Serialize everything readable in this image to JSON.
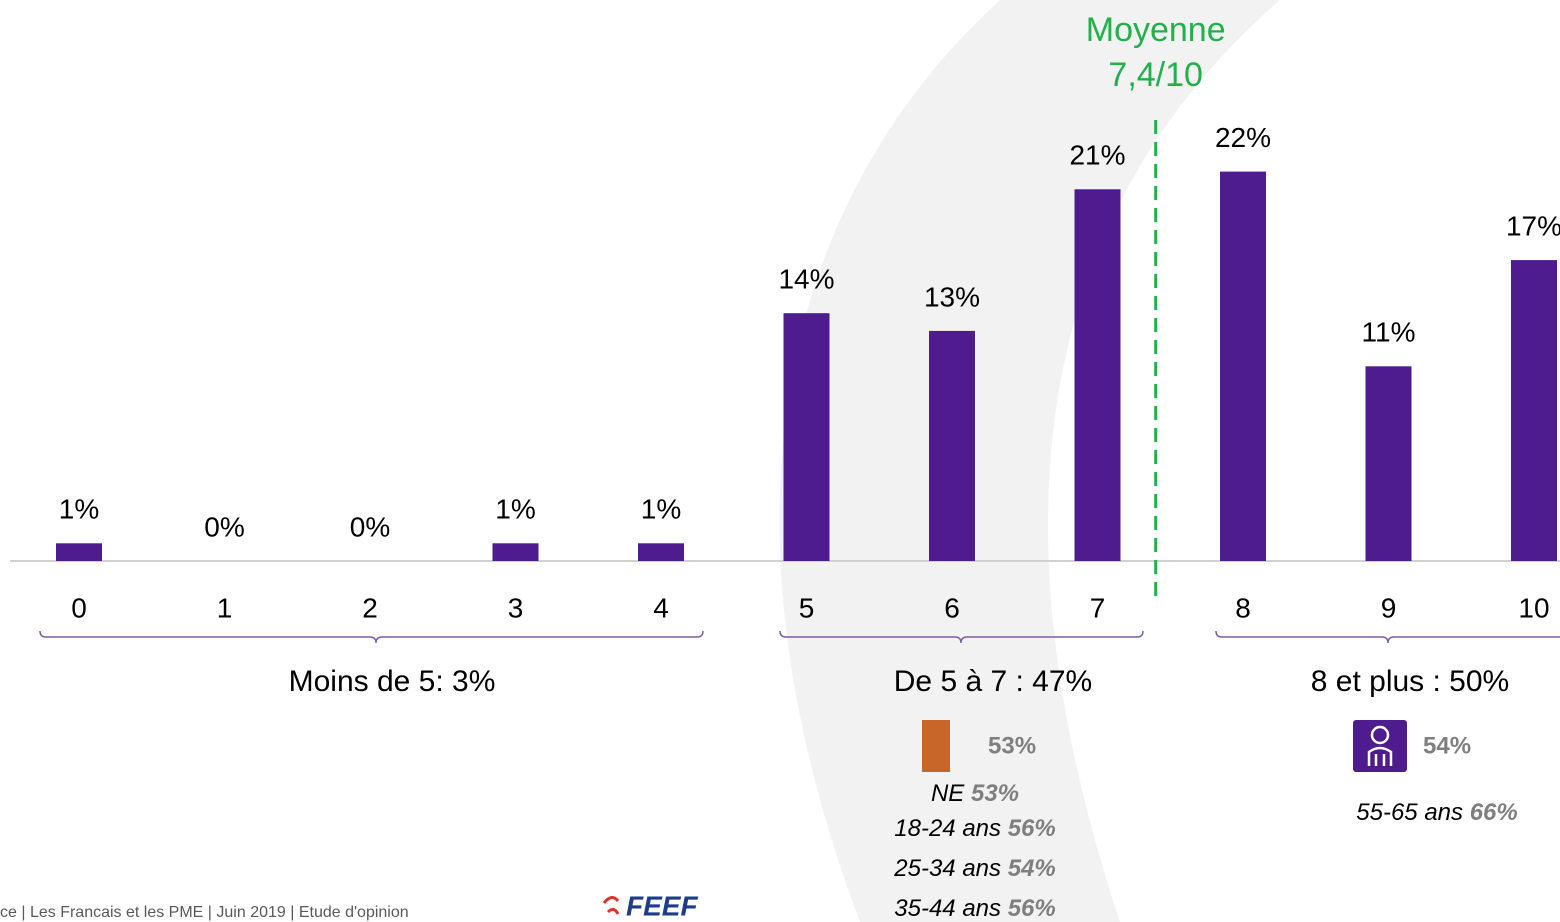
{
  "chart_data": {
    "type": "bar",
    "categories": [
      "0",
      "1",
      "2",
      "3",
      "4",
      "5",
      "6",
      "7",
      "8",
      "9",
      "10"
    ],
    "values": [
      1,
      0,
      0,
      1,
      1,
      14,
      13,
      21,
      22,
      11,
      17
    ],
    "value_labels": [
      "1%",
      "0%",
      "0%",
      "1%",
      "1%",
      "14%",
      "13%",
      "21%",
      "22%",
      "11%",
      "17%"
    ],
    "color": "#4f1c8f",
    "mean": {
      "title": "Moyenne",
      "value": 7.4,
      "label": "7,4/10",
      "color": "#22b04b"
    },
    "groups": [
      {
        "label": "Moins de 5: 3%"
      },
      {
        "label": "De 5 à 7 : 47%",
        "icon_value": "53%",
        "details": [
          {
            "label": "NE",
            "value": "53%"
          },
          {
            "label": "18-24 ans",
            "value": "56%"
          },
          {
            "label": "25-34 ans",
            "value": "54%"
          },
          {
            "label": "35-44 ans",
            "value": "56%"
          }
        ]
      },
      {
        "label": "8 et plus : 50%",
        "icon_value": "54%",
        "details": [
          {
            "label": "55-65 ans",
            "value": "66%"
          }
        ]
      }
    ]
  },
  "footer": "ce | Les Francais et les PME | Juin 2019 | Etude d'opinion",
  "logo": "FEEF"
}
